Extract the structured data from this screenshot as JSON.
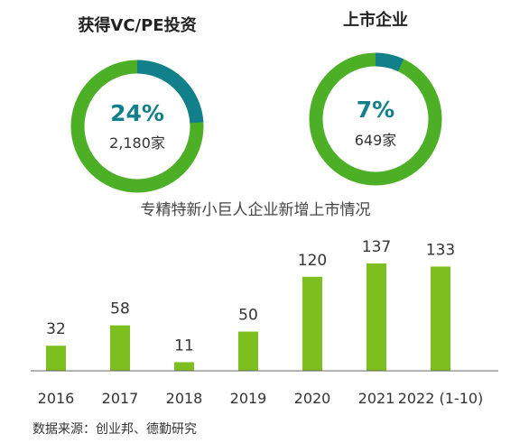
{
  "donuts": [
    {
      "title": "获得VC/PE投资",
      "percent_label": "24%",
      "count_label": "2,180家",
      "share": 0.24
    },
    {
      "title": "上市企业",
      "percent_label": "7%",
      "count_label": "649家",
      "share": 0.07
    }
  ],
  "colors": {
    "ring_green": "#4CAF26",
    "ring_teal": "#12808A",
    "bar_green": "#7CBF1E",
    "text_dark": "#333333",
    "axis": "#555555"
  },
  "chart_data": {
    "type": "bar",
    "title": "专精特新小巨人企业新增上市情况",
    "categories": [
      "2016",
      "2017",
      "2018",
      "2019",
      "2020",
      "2021",
      "2022 (1-10)"
    ],
    "values": [
      32,
      58,
      11,
      50,
      120,
      137,
      133
    ],
    "data_labels": [
      "32",
      "58",
      "11",
      "50",
      "120",
      "137",
      "133"
    ],
    "xlabel": "",
    "ylabel": "",
    "ylim": [
      0,
      137
    ],
    "grid": false,
    "legend": "none"
  },
  "source": "数据来源：创业邦、德勤研究"
}
